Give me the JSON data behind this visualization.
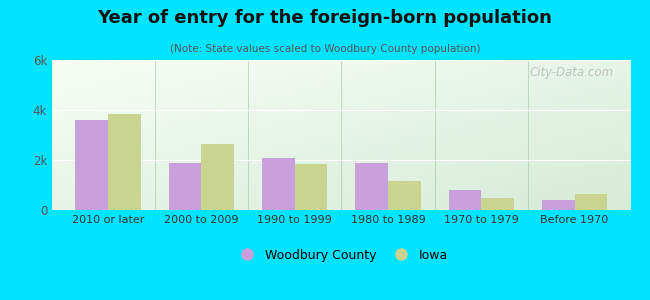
{
  "title": "Year of entry for the foreign-born population",
  "subtitle": "(Note: State values scaled to Woodbury County population)",
  "categories": [
    "2010 or later",
    "2000 to 2009",
    "1990 to 1999",
    "1980 to 1989",
    "1970 to 1979",
    "Before 1970"
  ],
  "woodbury": [
    3600,
    1900,
    2100,
    1900,
    800,
    400
  ],
  "iowa": [
    3850,
    2650,
    1850,
    1150,
    500,
    650
  ],
  "woodbury_color": "#c9a0dc",
  "iowa_color": "#c8d490",
  "background_outer": "#00e5ff",
  "ylim": [
    0,
    6000
  ],
  "yticks": [
    0,
    2000,
    4000,
    6000
  ],
  "ytick_labels": [
    "0",
    "2k",
    "4k",
    "6k"
  ],
  "bar_width": 0.35,
  "legend_labels": [
    "Woodbury County",
    "Iowa"
  ],
  "watermark": "City-Data.com"
}
